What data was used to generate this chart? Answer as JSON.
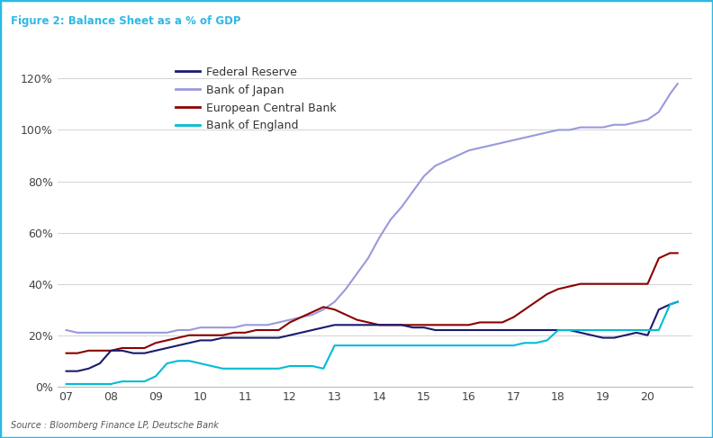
{
  "title": "Figure 2: Balance Sheet as a % of GDP",
  "source": "Source : Bloomberg Finance LP, Deutsche Bank",
  "ylim": [
    0,
    130
  ],
  "yticks": [
    0,
    20,
    40,
    60,
    80,
    100,
    120
  ],
  "ytick_labels": [
    "0%",
    "20%",
    "40%",
    "60%",
    "80%",
    "100%",
    "120%"
  ],
  "xtick_labels": [
    "07",
    "08",
    "09",
    "10",
    "11",
    "12",
    "13",
    "14",
    "15",
    "16",
    "17",
    "18",
    "19",
    "20"
  ],
  "background_color": "#ffffff",
  "border_color": "#2eb8e6",
  "title_color": "#2eb8e6",
  "fed": {
    "label": "Federal Reserve",
    "color": "#1a1a6e",
    "linewidth": 1.5,
    "x": [
      2007,
      2007.25,
      2007.5,
      2007.75,
      2008,
      2008.25,
      2008.5,
      2008.75,
      2009,
      2009.25,
      2009.5,
      2009.75,
      2010,
      2010.25,
      2010.5,
      2010.75,
      2011,
      2011.25,
      2011.5,
      2011.75,
      2012,
      2012.25,
      2012.5,
      2012.75,
      2013,
      2013.25,
      2013.5,
      2013.75,
      2014,
      2014.25,
      2014.5,
      2014.75,
      2015,
      2015.25,
      2015.5,
      2015.75,
      2016,
      2016.25,
      2016.5,
      2016.75,
      2017,
      2017.25,
      2017.5,
      2017.75,
      2018,
      2018.25,
      2018.5,
      2018.75,
      2019,
      2019.25,
      2019.5,
      2019.75,
      2020,
      2020.25,
      2020.5,
      2020.67
    ],
    "y": [
      6,
      6,
      7,
      9,
      14,
      14,
      13,
      13,
      14,
      15,
      16,
      17,
      18,
      18,
      19,
      19,
      19,
      19,
      19,
      19,
      20,
      21,
      22,
      23,
      24,
      24,
      24,
      24,
      24,
      24,
      24,
      23,
      23,
      22,
      22,
      22,
      22,
      22,
      22,
      22,
      22,
      22,
      22,
      22,
      22,
      22,
      21,
      20,
      19,
      19,
      20,
      21,
      20,
      30,
      32,
      33
    ]
  },
  "boj": {
    "label": "Bank of Japan",
    "color": "#9999dd",
    "linewidth": 1.5,
    "x": [
      2007,
      2007.25,
      2007.5,
      2007.75,
      2008,
      2008.25,
      2008.5,
      2008.75,
      2009,
      2009.25,
      2009.5,
      2009.75,
      2010,
      2010.25,
      2010.5,
      2010.75,
      2011,
      2011.25,
      2011.5,
      2011.75,
      2012,
      2012.25,
      2012.5,
      2012.75,
      2013,
      2013.25,
      2013.5,
      2013.75,
      2014,
      2014.25,
      2014.5,
      2014.75,
      2015,
      2015.25,
      2015.5,
      2015.75,
      2016,
      2016.25,
      2016.5,
      2016.75,
      2017,
      2017.25,
      2017.5,
      2017.75,
      2018,
      2018.25,
      2018.5,
      2018.75,
      2019,
      2019.25,
      2019.5,
      2019.75,
      2020,
      2020.25,
      2020.5,
      2020.67
    ],
    "y": [
      22,
      21,
      21,
      21,
      21,
      21,
      21,
      21,
      21,
      21,
      22,
      22,
      23,
      23,
      23,
      23,
      24,
      24,
      24,
      25,
      26,
      27,
      28,
      30,
      33,
      38,
      44,
      50,
      58,
      65,
      70,
      76,
      82,
      86,
      88,
      90,
      92,
      93,
      94,
      95,
      96,
      97,
      98,
      99,
      100,
      100,
      101,
      101,
      101,
      102,
      102,
      103,
      104,
      107,
      114,
      118
    ]
  },
  "ecb": {
    "label": "European Central Bank",
    "color": "#8b0000",
    "linewidth": 1.5,
    "x": [
      2007,
      2007.25,
      2007.5,
      2007.75,
      2008,
      2008.25,
      2008.5,
      2008.75,
      2009,
      2009.25,
      2009.5,
      2009.75,
      2010,
      2010.25,
      2010.5,
      2010.75,
      2011,
      2011.25,
      2011.5,
      2011.75,
      2012,
      2012.25,
      2012.5,
      2012.75,
      2013,
      2013.25,
      2013.5,
      2013.75,
      2014,
      2014.25,
      2014.5,
      2014.75,
      2015,
      2015.25,
      2015.5,
      2015.75,
      2016,
      2016.25,
      2016.5,
      2016.75,
      2017,
      2017.25,
      2017.5,
      2017.75,
      2018,
      2018.25,
      2018.5,
      2018.75,
      2019,
      2019.25,
      2019.5,
      2019.75,
      2020,
      2020.25,
      2020.5,
      2020.67
    ],
    "y": [
      13,
      13,
      14,
      14,
      14,
      15,
      15,
      15,
      17,
      18,
      19,
      20,
      20,
      20,
      20,
      21,
      21,
      22,
      22,
      22,
      25,
      27,
      29,
      31,
      30,
      28,
      26,
      25,
      24,
      24,
      24,
      24,
      24,
      24,
      24,
      24,
      24,
      25,
      25,
      25,
      27,
      30,
      33,
      36,
      38,
      39,
      40,
      40,
      40,
      40,
      40,
      40,
      40,
      50,
      52,
      52
    ]
  },
  "boe": {
    "label": "Bank of England",
    "color": "#00bcd4",
    "linewidth": 1.5,
    "x": [
      2007,
      2007.25,
      2007.5,
      2007.75,
      2008,
      2008.25,
      2008.5,
      2008.75,
      2009,
      2009.25,
      2009.5,
      2009.75,
      2010,
      2010.25,
      2010.5,
      2010.75,
      2011,
      2011.25,
      2011.5,
      2011.75,
      2012,
      2012.25,
      2012.5,
      2012.75,
      2013,
      2013.25,
      2013.5,
      2013.75,
      2014,
      2014.25,
      2014.5,
      2014.75,
      2015,
      2015.25,
      2015.5,
      2015.75,
      2016,
      2016.25,
      2016.5,
      2016.75,
      2017,
      2017.25,
      2017.5,
      2017.75,
      2018,
      2018.25,
      2018.5,
      2018.75,
      2019,
      2019.25,
      2019.5,
      2019.75,
      2020,
      2020.25,
      2020.5,
      2020.67
    ],
    "y": [
      1,
      1,
      1,
      1,
      1,
      2,
      2,
      2,
      4,
      9,
      10,
      10,
      9,
      8,
      7,
      7,
      7,
      7,
      7,
      7,
      8,
      8,
      8,
      7,
      16,
      16,
      16,
      16,
      16,
      16,
      16,
      16,
      16,
      16,
      16,
      16,
      16,
      16,
      16,
      16,
      16,
      17,
      17,
      18,
      22,
      22,
      22,
      22,
      22,
      22,
      22,
      22,
      22,
      22,
      32,
      33
    ]
  }
}
